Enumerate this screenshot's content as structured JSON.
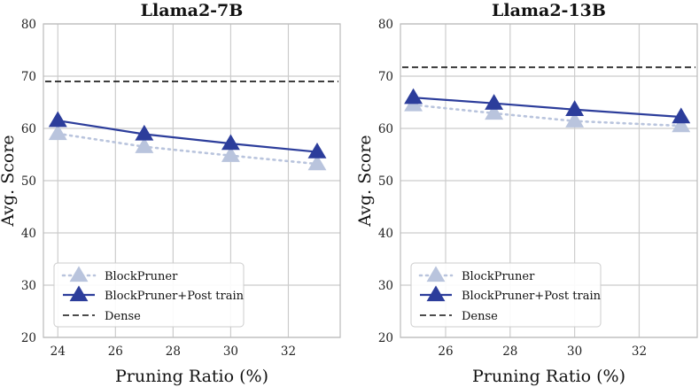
{
  "chart_data": [
    {
      "type": "line",
      "title": "Llama2-7B",
      "xlabel": "Pruning Ratio (%)",
      "ylabel": "Avg. Score",
      "xlim": [
        23.5,
        33.8
      ],
      "ylim": [
        20,
        80
      ],
      "xticks": [
        24,
        26,
        28,
        30,
        32
      ],
      "yticks": [
        20,
        30,
        40,
        50,
        60,
        70,
        80
      ],
      "grid": true,
      "legend": "bottom-left",
      "series": [
        {
          "name": "BlockPruner",
          "x": [
            24,
            27,
            30,
            33
          ],
          "y": [
            59,
            56.5,
            54.8,
            53.2
          ],
          "style": "dotted",
          "color": "#b9c4dd",
          "marker": "triangle"
        },
        {
          "name": "BlockPruner+Post train",
          "x": [
            24,
            27,
            30,
            33
          ],
          "y": [
            61.5,
            58.9,
            57.1,
            55.5
          ],
          "style": "solid",
          "color": "#2c3d9b",
          "marker": "triangle"
        },
        {
          "name": "Dense",
          "y_constant": 69,
          "style": "dashed",
          "color": "#111111"
        }
      ]
    },
    {
      "type": "line",
      "title": "Llama2-13B",
      "xlabel": "Pruning Ratio (%)",
      "ylabel": "Avg. Score",
      "xlim": [
        24.6,
        33.8
      ],
      "ylim": [
        20,
        80
      ],
      "xticks": [
        26,
        28,
        30,
        32
      ],
      "yticks": [
        20,
        30,
        40,
        50,
        60,
        70,
        80
      ],
      "grid": true,
      "legend": "bottom-left",
      "series": [
        {
          "name": "BlockPruner",
          "x": [
            25,
            27.5,
            30,
            33.3
          ],
          "y": [
            64.5,
            62.9,
            61.4,
            60.5
          ],
          "style": "dotted",
          "color": "#b9c4dd",
          "marker": "triangle"
        },
        {
          "name": "BlockPruner+Post train",
          "x": [
            25,
            27.5,
            30,
            33.3
          ],
          "y": [
            65.9,
            64.8,
            63.6,
            62.2
          ],
          "style": "solid",
          "color": "#2c3d9b",
          "marker": "triangle"
        },
        {
          "name": "Dense",
          "y_constant": 71.7,
          "style": "dashed",
          "color": "#111111"
        }
      ]
    }
  ]
}
